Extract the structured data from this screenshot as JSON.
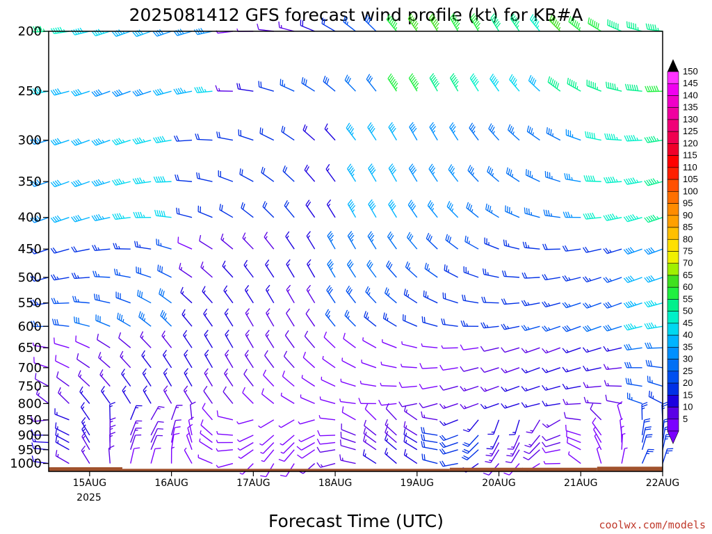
{
  "chart_data": {
    "type": "wind-barb-profile",
    "title": "2025081412 GFS forecast wind profile (kt) for KB#A",
    "xlabel": "Forecast Time (UTC)",
    "credit": "coolwx.com/models",
    "ylabel": "",
    "y_axis": "pressure (hPa), inverted",
    "ylim": [
      200,
      1030
    ],
    "y_ticks": [
      200,
      250,
      300,
      350,
      400,
      450,
      500,
      550,
      600,
      650,
      700,
      750,
      800,
      850,
      900,
      950,
      1000
    ],
    "x_tick_labels": [
      "15AUG",
      "16AUG",
      "17AUG",
      "18AUG",
      "19AUG",
      "20AUG",
      "21AUG",
      "22AUG"
    ],
    "x_year_label": "2025",
    "x_range_days": [
      -0.5,
      7.0
    ],
    "forecast_step_hours": 6,
    "levels": [
      1000,
      950,
      925,
      900,
      850,
      800,
      750,
      700,
      650,
      600,
      550,
      500,
      450,
      400,
      350,
      300,
      250,
      200
    ],
    "colorbar": {
      "unit": "kt",
      "levels": [
        5,
        10,
        15,
        20,
        25,
        30,
        35,
        40,
        45,
        50,
        55,
        60,
        65,
        70,
        75,
        80,
        85,
        90,
        95,
        100,
        105,
        110,
        115,
        120,
        125,
        130,
        135,
        140,
        145,
        150
      ],
      "colors": [
        "#7b00ff",
        "#5a00e6",
        "#1c00e0",
        "#0030e6",
        "#0050f0",
        "#0070f5",
        "#0090ff",
        "#00b4ff",
        "#00d8f0",
        "#00f0c8",
        "#00f08c",
        "#20f040",
        "#40e020",
        "#a0f000",
        "#f0f000",
        "#ffe000",
        "#ffc000",
        "#ffa000",
        "#ff8c00",
        "#ff7000",
        "#ff5000",
        "#ff2000",
        "#ff0000",
        "#f0002a",
        "#f00050",
        "#f00078",
        "#f000a0",
        "#f000c8",
        "#f000f0",
        "#ff33ff"
      ]
    },
    "grid": false,
    "legend": "right colorbar"
  }
}
